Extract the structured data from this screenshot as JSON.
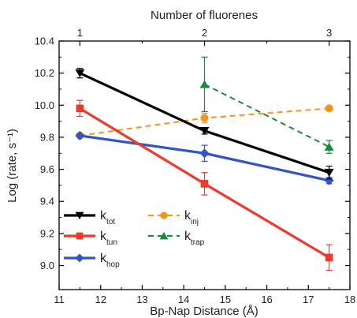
{
  "chart_data": {
    "type": "line",
    "title": "",
    "xlabel": "Bp-Nap Distance (Å)",
    "ylabel": "Log (rate, s⁻¹)",
    "top_xlabel": "Number of fluorenes",
    "xlim": [
      11,
      18
    ],
    "ylim": [
      8.85,
      10.4
    ],
    "x_ticks": [
      "11",
      "12",
      "13",
      "14",
      "15",
      "16",
      "17",
      "18"
    ],
    "y_ticks": [
      "9.0",
      "9.2",
      "9.4",
      "9.6",
      "9.8",
      "10.0",
      "10.2",
      "10.4"
    ],
    "top_ticks": [
      {
        "label": "1",
        "x": 11.5
      },
      {
        "label": "2",
        "x": 14.5
      },
      {
        "label": "3",
        "x": 17.5
      }
    ],
    "series": [
      {
        "key": "tot",
        "name_main": "k",
        "name_sub": "tot",
        "color": "#000000",
        "dash": false,
        "marker": "triangle-down",
        "x": [
          11.5,
          14.5,
          17.5
        ],
        "y": [
          10.2,
          9.84,
          9.58
        ],
        "err": [
          0.03,
          0.02,
          0.04
        ]
      },
      {
        "key": "tun",
        "name_main": "k",
        "name_sub": "tun",
        "color": "#f0392b",
        "dash": false,
        "marker": "square",
        "x": [
          11.5,
          14.5,
          17.5
        ],
        "y": [
          9.98,
          9.51,
          9.05
        ],
        "err": [
          0.05,
          0.07,
          0.08
        ]
      },
      {
        "key": "hop",
        "name_main": "k",
        "name_sub": "hop",
        "color": "#2f55c8",
        "dash": false,
        "marker": "diamond",
        "x": [
          11.5,
          14.5,
          17.5
        ],
        "y": [
          9.81,
          9.7,
          9.53
        ],
        "err": [
          0.0,
          0.05,
          0.02
        ]
      },
      {
        "key": "inj",
        "name_main": "k",
        "name_sub": "inj",
        "color": "#f7941d",
        "dash": true,
        "marker": "circle",
        "x": [
          11.5,
          14.5,
          17.5
        ],
        "y": [
          9.81,
          9.92,
          9.98
        ],
        "err": [
          0.0,
          0.03,
          0.0
        ]
      },
      {
        "key": "trap",
        "name_main": "k",
        "name_sub": "trap",
        "color": "#16893c",
        "dash": true,
        "marker": "triangle-up",
        "x": [
          14.5,
          17.5
        ],
        "y": [
          10.13,
          9.74
        ],
        "err": [
          0.17,
          0.04
        ]
      }
    ],
    "legend_placement": "bottom-left",
    "grid": false
  }
}
